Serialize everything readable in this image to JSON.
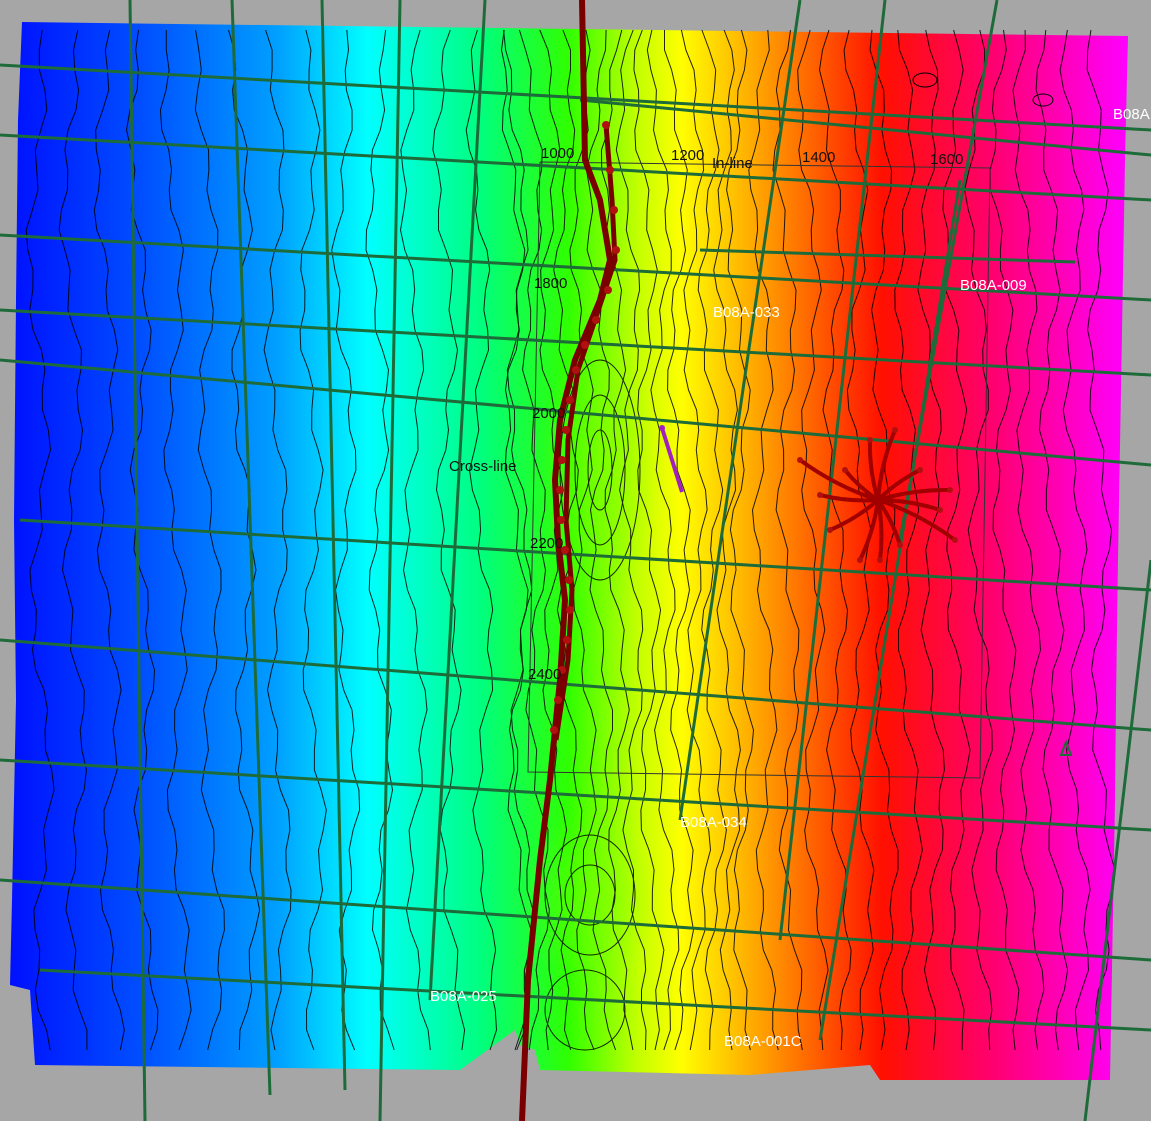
{
  "map": {
    "colors": {
      "background": "#a6a6a6",
      "ramp": [
        "#0010ff",
        "#0060ff",
        "#00c8ff",
        "#00ffff",
        "#00ff40",
        "#40ff00",
        "#ffff00",
        "#ffb000",
        "#ff6000",
        "#ff1000",
        "#ff00a0",
        "#ff00ff"
      ],
      "seismic_line": "#1e6b3a",
      "contour": "#000000",
      "well_path": "#7a0000",
      "well_marker": "#b01010",
      "highlight_segment": "#a020c0",
      "survey_outline": "#333333"
    },
    "survey_labels": {
      "inline_title": "In-line",
      "crossline_title": "Cross-line",
      "inline_ticks": [
        "1000",
        "1200",
        "1400",
        "1600"
      ],
      "crossline_ticks": [
        "1800",
        "2000",
        "2200",
        "2400"
      ]
    },
    "line_labels": [
      "B08A",
      "B08A-009",
      "B08A-033",
      "B08A-034",
      "B08A-025",
      "B08A-001C"
    ]
  }
}
